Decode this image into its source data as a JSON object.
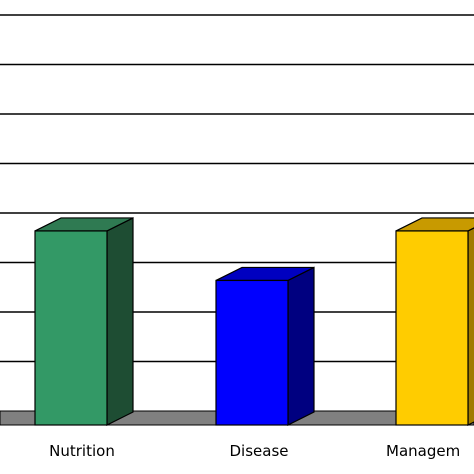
{
  "chart_data": {
    "type": "bar",
    "style": "3d",
    "categories": [
      "Nutrition",
      "Disease",
      "Managem"
    ],
    "values": [
      3.9,
      2.9,
      3.9
    ],
    "bar_colors": [
      {
        "front": "#339966",
        "side": "#1e4d33",
        "top": "#2f7a52"
      },
      {
        "front": "#0000ff",
        "side": "#000080",
        "top": "#0000c0"
      },
      {
        "front": "#ffcc00",
        "side": "#a07a00",
        "top": "#c89a00"
      }
    ],
    "title": "",
    "xlabel": "",
    "ylabel": "",
    "ylim": [
      0,
      8
    ],
    "grid": true,
    "gridline_color": "#000000",
    "floor_color": "#808080"
  }
}
